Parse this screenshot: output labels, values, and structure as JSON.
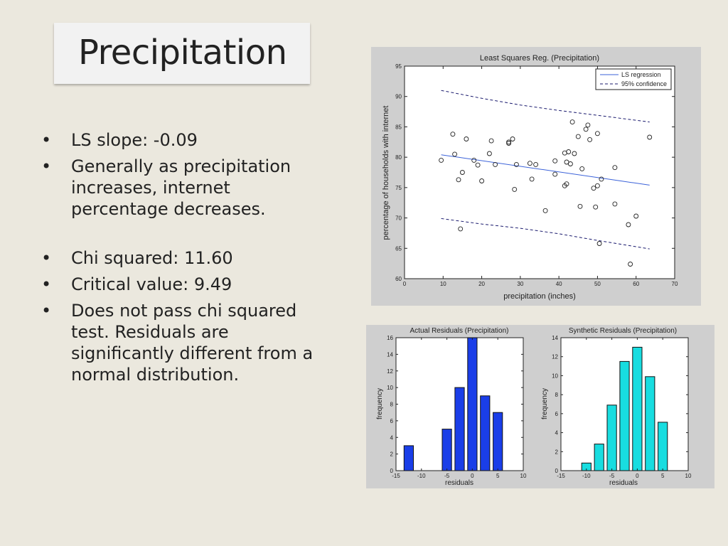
{
  "slide": {
    "title": "Precipitation",
    "bullet_symbol": "•",
    "bullets": [
      "LS slope: -0.09",
      "Generally as precipitation increases, internet percentage decreases.",
      "Chi squared: 11.60",
      "Critical value: 9.49",
      "Does not pass chi squared test. Residuals are significantly different from a normal distribution."
    ]
  },
  "chart_data": [
    {
      "type": "scatter",
      "title": "Least Squares Reg. (Precipitation)",
      "xlabel": "precipitation (inches)",
      "ylabel": "percentage of households with internet",
      "xlim": [
        0,
        70
      ],
      "ylim": [
        60,
        95
      ],
      "xticks": [
        0,
        10,
        20,
        30,
        40,
        50,
        60,
        70
      ],
      "yticks": [
        60,
        65,
        70,
        75,
        80,
        85,
        90,
        95
      ],
      "legend": {
        "position": "top-right",
        "entries": [
          "LS regression",
          "95% confidence"
        ]
      },
      "colors": {
        "regression": "#3b62d9",
        "confidence": "#1a1a6e",
        "points": "#222222"
      },
      "points": [
        [
          9.5,
          79.5
        ],
        [
          12.5,
          83.8
        ],
        [
          13,
          80.5
        ],
        [
          14,
          76.3
        ],
        [
          14.5,
          68.2
        ],
        [
          15,
          77.5
        ],
        [
          16,
          83
        ],
        [
          18,
          79.5
        ],
        [
          19,
          78.7
        ],
        [
          20,
          76.1
        ],
        [
          22,
          80.6
        ],
        [
          22.5,
          82.7
        ],
        [
          23.5,
          78.8
        ],
        [
          27,
          82.5
        ],
        [
          27,
          82.3
        ],
        [
          28,
          83
        ],
        [
          28.5,
          74.7
        ],
        [
          29,
          78.8
        ],
        [
          32.5,
          79
        ],
        [
          33,
          76.4
        ],
        [
          34,
          78.8
        ],
        [
          36.5,
          71.2
        ],
        [
          39,
          79.4
        ],
        [
          39,
          77.2
        ],
        [
          41.5,
          80.7
        ],
        [
          41.5,
          75.3
        ],
        [
          42,
          75.6
        ],
        [
          42,
          79.2
        ],
        [
          42.5,
          80.9
        ],
        [
          43,
          78.9
        ],
        [
          43.5,
          85.8
        ],
        [
          44,
          80.6
        ],
        [
          45,
          83.4
        ],
        [
          45.5,
          71.9
        ],
        [
          46,
          78.1
        ],
        [
          47,
          84.6
        ],
        [
          47.5,
          85.3
        ],
        [
          48,
          82.9
        ],
        [
          49,
          74.9
        ],
        [
          49.5,
          71.8
        ],
        [
          50,
          75.3
        ],
        [
          50,
          83.9
        ],
        [
          50.5,
          65.8
        ],
        [
          51,
          76.4
        ],
        [
          54.5,
          78.3
        ],
        [
          54.5,
          72.3
        ],
        [
          58,
          68.9
        ],
        [
          58.5,
          62.4
        ],
        [
          60,
          70.3
        ],
        [
          63.5,
          83.3
        ]
      ],
      "regression_line": [
        [
          9.5,
          80.4
        ],
        [
          63.5,
          75.4
        ]
      ],
      "confidence_upper": [
        [
          9.5,
          91
        ],
        [
          20,
          89.7
        ],
        [
          30,
          88.6
        ],
        [
          40,
          87.7
        ],
        [
          50,
          86.9
        ],
        [
          63.5,
          85.8
        ]
      ],
      "confidence_lower": [
        [
          9.5,
          69.9
        ],
        [
          20,
          69
        ],
        [
          30,
          68.3
        ],
        [
          40,
          67.4
        ],
        [
          50,
          66.3
        ],
        [
          63.5,
          64.9
        ]
      ]
    },
    {
      "type": "bar",
      "title": "Actual Residuals (Precipitation)",
      "xlabel": "residuals",
      "ylabel": "frequency",
      "xlim": [
        -15,
        10
      ],
      "ylim": [
        0,
        16
      ],
      "xticks": [
        -15,
        -10,
        -5,
        0,
        5,
        10
      ],
      "yticks": [
        0,
        2,
        4,
        6,
        8,
        10,
        12,
        14,
        16
      ],
      "bin_width": 2.5,
      "bin_centers": [
        -12.5,
        -10,
        -7.5,
        -5,
        -2.5,
        0,
        2.5,
        5,
        7.5
      ],
      "values": [
        3,
        0,
        0,
        5,
        10,
        16,
        9,
        7,
        0
      ],
      "color": "#1a3ee8"
    },
    {
      "type": "bar",
      "title": "Synthetic Residuals (Precipitation)",
      "xlabel": "residuals",
      "ylabel": "frequency",
      "xlim": [
        -15,
        10
      ],
      "ylim": [
        0,
        14
      ],
      "xticks": [
        -15,
        -10,
        -5,
        0,
        5,
        10
      ],
      "yticks": [
        0,
        2,
        4,
        6,
        8,
        10,
        12,
        14
      ],
      "bin_width": 2.5,
      "bin_centers": [
        -12.5,
        -10,
        -7.5,
        -5,
        -2.5,
        0,
        2.5,
        5,
        7.5
      ],
      "values": [
        0,
        0.8,
        2.8,
        6.9,
        11.5,
        13,
        9.9,
        5.1,
        0
      ],
      "color": "#18dde0"
    }
  ]
}
